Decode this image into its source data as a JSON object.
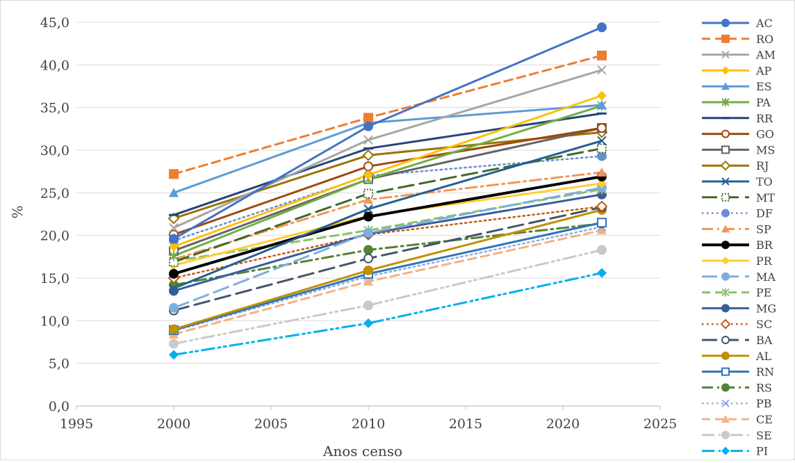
{
  "chart_data": {
    "type": "line",
    "title": "",
    "xlabel": "Anos censo",
    "ylabel": "%",
    "xlim": [
      1995,
      2025
    ],
    "ylim": [
      0,
      45
    ],
    "x_ticks": [
      1995,
      2000,
      2005,
      2010,
      2015,
      2020,
      2025
    ],
    "y_ticks": [
      "0,0",
      "5,0",
      "10,0",
      "15,0",
      "20,0",
      "25,0",
      "30,0",
      "35,0",
      "40,0",
      "45,0"
    ],
    "grid": "horizontal",
    "legend_position": "right",
    "x": [
      2000,
      2010,
      2022
    ],
    "series": [
      {
        "name": "AC",
        "values": [
          19.6,
          32.8,
          44.4
        ],
        "color": "#4472C4",
        "dash": "solid",
        "marker": "circle",
        "width": 3
      },
      {
        "name": "RO",
        "values": [
          27.2,
          33.8,
          41.1
        ],
        "color": "#ED7D31",
        "dash": "dash",
        "marker": "square",
        "width": 3
      },
      {
        "name": "AM",
        "values": [
          20.9,
          31.2,
          39.4
        ],
        "color": "#A5A5A5",
        "dash": "solid",
        "marker": "x",
        "width": 3
      },
      {
        "name": "AP",
        "values": [
          18.7,
          27.1,
          36.4
        ],
        "color": "#FFC000",
        "dash": "solid",
        "marker": "diamond",
        "width": 3
      },
      {
        "name": "ES",
        "values": [
          25.0,
          33.2,
          35.3
        ],
        "color": "#5B9BD5",
        "dash": "solid",
        "marker": "triangle",
        "width": 3
      },
      {
        "name": "PA",
        "values": [
          17.6,
          26.6,
          35.2
        ],
        "color": "#70AD47",
        "dash": "solid",
        "marker": "star",
        "width": 3
      },
      {
        "name": "RR",
        "values": [
          22.4,
          30.2,
          34.3
        ],
        "color": "#264478",
        "dash": "solid",
        "marker": "dash",
        "width": 3
      },
      {
        "name": "GO",
        "values": [
          20.1,
          28.1,
          32.6
        ],
        "color": "#9E480E",
        "dash": "solid",
        "marker": "circle-open",
        "width": 3
      },
      {
        "name": "MS",
        "values": [
          18.2,
          26.6,
          32.6
        ],
        "color": "#636363",
        "dash": "solid",
        "marker": "square-open",
        "width": 3
      },
      {
        "name": "RJ",
        "values": [
          22.0,
          29.4,
          32.1
        ],
        "color": "#997300",
        "dash": "solid",
        "marker": "diamond-open",
        "width": 3
      },
      {
        "name": "TO",
        "values": [
          13.8,
          23.1,
          31.1
        ],
        "color": "#255E91",
        "dash": "solid",
        "marker": "x",
        "width": 3
      },
      {
        "name": "MT",
        "values": [
          16.9,
          24.9,
          30.2
        ],
        "color": "#43682B",
        "dash": "longdash",
        "marker": "square-dotted",
        "width": 3
      },
      {
        "name": "DF",
        "values": [
          19.4,
          27.0,
          29.3
        ],
        "color": "#698ED0",
        "dash": "dot",
        "marker": "circle",
        "width": 2.5
      },
      {
        "name": "SP",
        "values": [
          17.2,
          24.2,
          27.4
        ],
        "color": "#F1975A",
        "dash": "dashdot",
        "marker": "triangle",
        "width": 3
      },
      {
        "name": "BR",
        "values": [
          15.5,
          22.2,
          26.9
        ],
        "color": "#000000",
        "dash": "solid",
        "marker": "circle",
        "width": 4
      },
      {
        "name": "PR",
        "values": [
          16.5,
          22.3,
          26.1
        ],
        "color": "#FFCD33",
        "dash": "solid",
        "marker": "diamond",
        "width": 3
      },
      {
        "name": "MA",
        "values": [
          11.5,
          20.3,
          25.6
        ],
        "color": "#7CAFDD",
        "dash": "longdash",
        "marker": "circle",
        "width": 3
      },
      {
        "name": "PE",
        "values": [
          17.0,
          20.6,
          25.4
        ],
        "color": "#8CC168",
        "dash": "dash",
        "marker": "star",
        "width": 3
      },
      {
        "name": "MG",
        "values": [
          13.5,
          20.2,
          24.8
        ],
        "color": "#3A5C9B",
        "dash": "solid",
        "marker": "circle",
        "width": 3
      },
      {
        "name": "SC",
        "values": [
          15.0,
          20.1,
          23.4
        ],
        "color": "#C55A11",
        "dash": "dot",
        "marker": "diamond-open",
        "width": 2.5
      },
      {
        "name": "BA",
        "values": [
          11.2,
          17.3,
          23.3
        ],
        "color": "#44546A",
        "dash": "longdash",
        "marker": "circle-open",
        "width": 3
      },
      {
        "name": "AL",
        "values": [
          9.0,
          15.9,
          23.0
        ],
        "color": "#BF9000",
        "dash": "solid",
        "marker": "circle",
        "width": 3
      },
      {
        "name": "RN",
        "values": [
          8.9,
          15.5,
          21.5
        ],
        "color": "#2E75B6",
        "dash": "solid",
        "marker": "square-open",
        "width": 3
      },
      {
        "name": "RS",
        "values": [
          14.2,
          18.3,
          21.4
        ],
        "color": "#548235",
        "dash": "dashdot",
        "marker": "circle",
        "width": 3
      },
      {
        "name": "PB",
        "values": [
          8.8,
          15.2,
          21.0
        ],
        "color": "#8FAADC",
        "dash": "dot",
        "marker": "x",
        "width": 2.5
      },
      {
        "name": "CE",
        "values": [
          8.4,
          14.6,
          20.6
        ],
        "color": "#F4B183",
        "dash": "dash",
        "marker": "triangle",
        "width": 3
      },
      {
        "name": "SE",
        "values": [
          7.3,
          11.8,
          18.3
        ],
        "color": "#C9C9C9",
        "dash": "dashdotdot",
        "marker": "circle",
        "width": 3
      },
      {
        "name": "PI",
        "values": [
          6.0,
          9.7,
          15.6
        ],
        "color": "#00B0F0",
        "dash": "dashdotdot",
        "marker": "diamond",
        "width": 3
      }
    ]
  }
}
